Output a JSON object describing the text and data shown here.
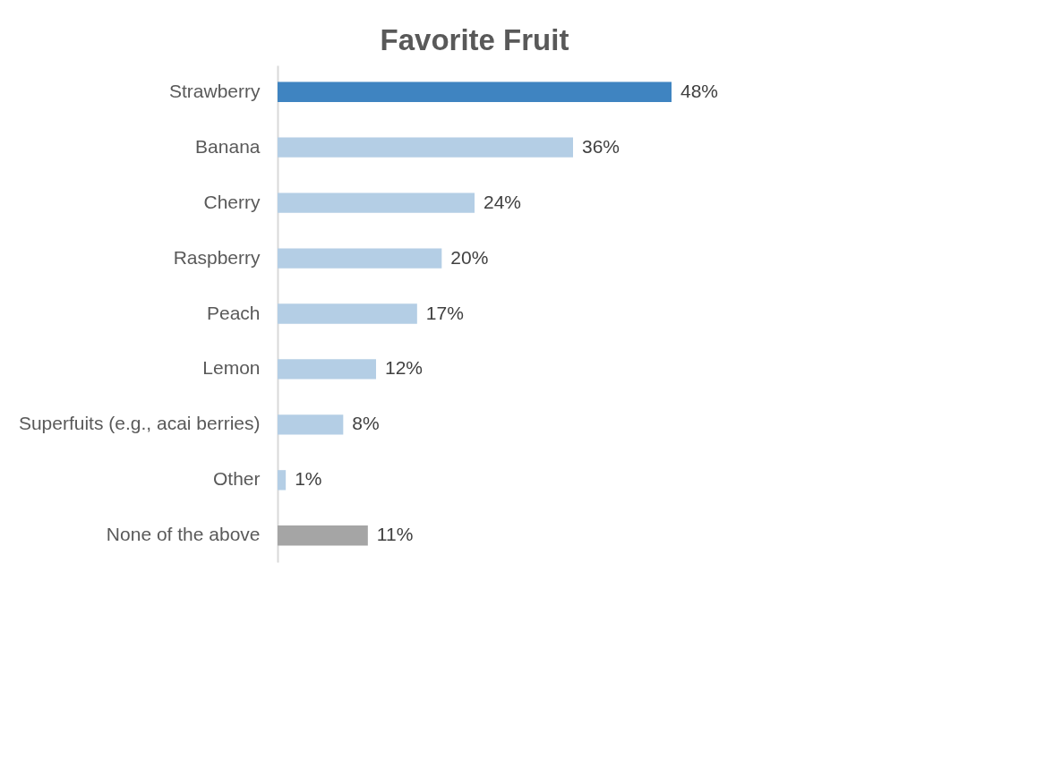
{
  "chart_data": {
    "type": "bar",
    "orientation": "horizontal",
    "title": "Favorite Fruit",
    "categories": [
      "Strawberry",
      "Banana",
      "Cherry",
      "Raspberry",
      "Peach",
      "Lemon",
      "Superfuits (e.g., acai berries)",
      "Other",
      "None of the above"
    ],
    "values": [
      48,
      36,
      24,
      20,
      17,
      12,
      8,
      1,
      11
    ],
    "colors": [
      "#3f84c1",
      "#b4cee5",
      "#b4cee5",
      "#b4cee5",
      "#b4cee5",
      "#b4cee5",
      "#b4cee5",
      "#b4cee5",
      "#a5a5a5"
    ],
    "value_labels": [
      "48%",
      "36%",
      "24%",
      "20%",
      "17%",
      "12%",
      "8%",
      "1%",
      "11%"
    ],
    "grid": false
  }
}
